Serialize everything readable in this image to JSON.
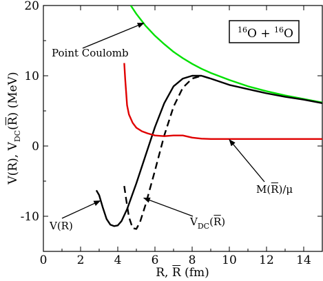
{
  "chart_data": {
    "type": "line",
    "title": "",
    "system_label": {
      "a_mass": "16",
      "a_sym": "O",
      "plus": " + ",
      "b_mass": "16",
      "b_sym": "O"
    },
    "xlabel": {
      "main": "R, ",
      "rbar": "R",
      "unit": " (fm)"
    },
    "ylabel": {
      "v": "V(R), V",
      "dc": "DC",
      "open": "(",
      "rbar": "R",
      "close": ") (MeV)"
    },
    "xlim": [
      0,
      15
    ],
    "ylim": [
      -15,
      20
    ],
    "xticks": [
      0,
      2,
      4,
      6,
      8,
      10,
      12,
      14
    ],
    "yticks": [
      -10,
      0,
      10,
      20
    ],
    "grid": false,
    "legend": "none",
    "series": [
      {
        "key": "point_coulomb",
        "name": "Point Coulomb",
        "color": "#00e000",
        "style": "solid",
        "x": [
          4.7,
          5.0,
          5.5,
          6.0,
          6.5,
          7.0,
          7.5,
          8.0,
          8.5,
          9.0,
          10.0,
          11.0,
          12.0,
          13.0,
          14.0,
          15.0
        ],
        "y": [
          20.0,
          18.8,
          17.1,
          15.7,
          14.5,
          13.4,
          12.5,
          11.7,
          11.0,
          10.4,
          9.4,
          8.5,
          7.8,
          7.2,
          6.7,
          6.2
        ]
      },
      {
        "key": "v_r",
        "name": "V(R)",
        "color": "#000000",
        "style": "solid",
        "x": [
          2.85,
          3.0,
          3.2,
          3.4,
          3.6,
          3.8,
          4.0,
          4.2,
          4.5,
          5.0,
          5.5,
          6.0,
          6.5,
          7.0,
          7.5,
          8.0,
          8.5,
          9.0,
          10.0,
          11.0,
          12.0,
          13.0,
          14.0,
          15.0
        ],
        "y": [
          -6.3,
          -7.0,
          -8.8,
          -10.4,
          -11.2,
          -11.4,
          -11.3,
          -10.7,
          -9.0,
          -5.3,
          -1.3,
          2.7,
          6.1,
          8.5,
          9.6,
          10.0,
          10.0,
          9.6,
          8.7,
          8.1,
          7.5,
          7.0,
          6.6,
          6.1
        ]
      },
      {
        "key": "v_dc",
        "name": "V_DC(R̄)",
        "color": "#000000",
        "style": "dashed",
        "x": [
          4.35,
          4.45,
          4.6,
          4.8,
          5.0,
          5.2,
          5.5,
          6.0,
          6.5,
          7.0,
          7.5,
          8.0,
          8.5,
          9.0
        ],
        "y": [
          -5.7,
          -7.6,
          -10.1,
          -11.7,
          -11.8,
          -10.8,
          -8.3,
          -3.5,
          1.5,
          5.6,
          8.3,
          9.6,
          10.0,
          9.6
        ]
      },
      {
        "key": "m_ratio",
        "name": "M(R̄)/μ",
        "color": "#e00000",
        "style": "solid",
        "x": [
          4.35,
          4.4,
          4.45,
          4.5,
          4.6,
          4.8,
          5.0,
          5.3,
          5.6,
          6.0,
          6.5,
          7.0,
          7.5,
          8.0,
          8.5,
          9.0,
          10.0,
          11.0,
          12.0,
          13.0,
          14.0,
          15.0
        ],
        "y": [
          11.8,
          9.5,
          7.6,
          5.8,
          4.5,
          3.3,
          2.6,
          2.1,
          1.8,
          1.5,
          1.4,
          1.5,
          1.5,
          1.2,
          1.05,
          1.0,
          1.0,
          1.0,
          1.0,
          1.0,
          1.0,
          1.0
        ]
      }
    ],
    "annotations": [
      {
        "key": "point_coulomb",
        "label": "Point Coulomb",
        "tip": [
          5.4,
          17.5
        ]
      },
      {
        "key": "v_r",
        "label": "V(R)",
        "tip": [
          3.05,
          -7.8
        ]
      },
      {
        "key": "v_dc",
        "label_main": "V",
        "label_sub": "DC",
        "label_open": "(",
        "label_rbar": "R",
        "label_close": ")",
        "tip": [
          5.4,
          -7.4
        ]
      },
      {
        "key": "m_ratio",
        "label_main": "M(",
        "label_rbar": "R",
        "label_close": ")/μ",
        "tip": [
          10.0,
          0.9
        ]
      }
    ]
  }
}
